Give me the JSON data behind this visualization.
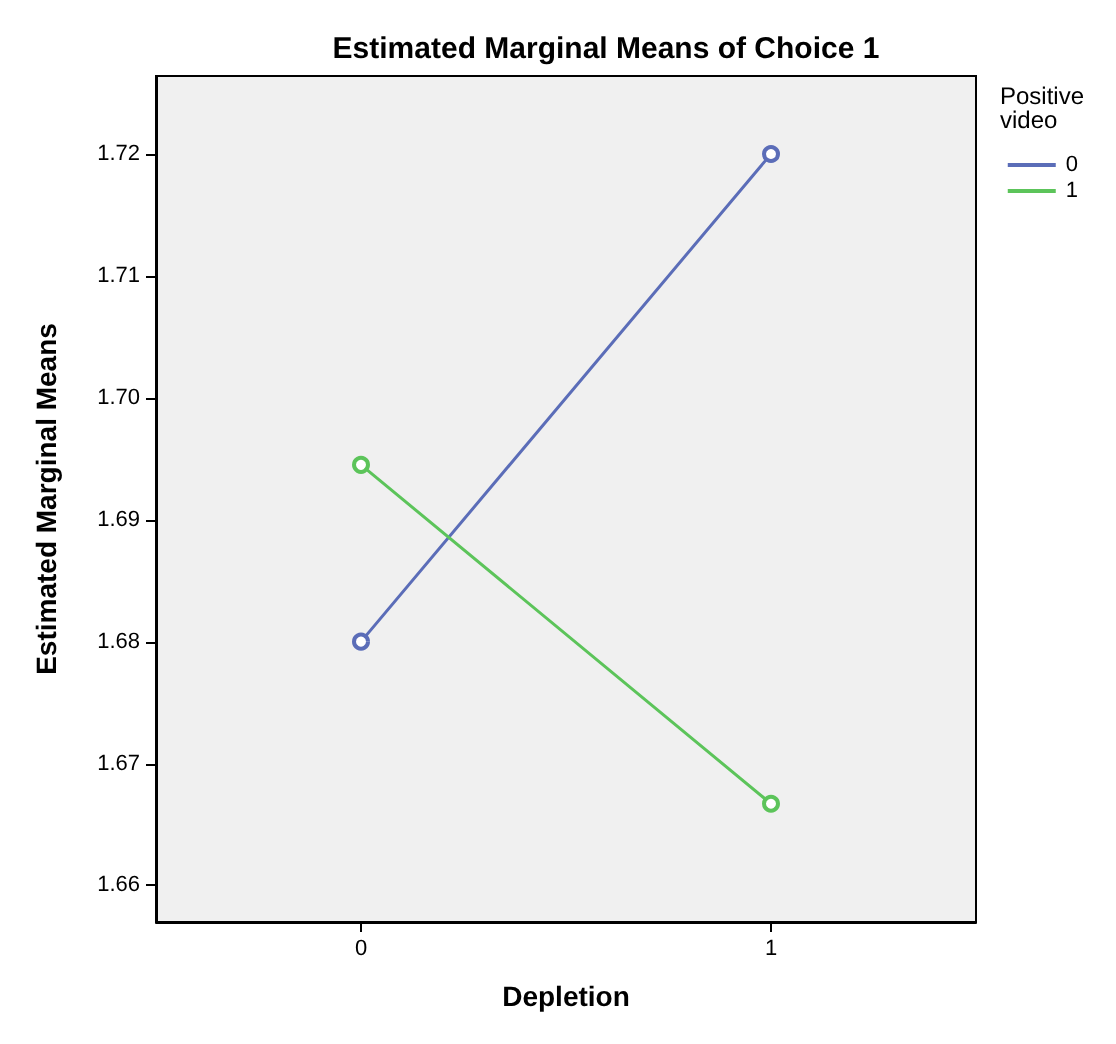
{
  "chart_data": {
    "type": "line",
    "title": "Estimated Marginal Means of Choice 1",
    "xlabel": "Depletion",
    "ylabel": "Estimated Marginal Means",
    "legend_title": "Positive video",
    "categories": [
      "0",
      "1"
    ],
    "series": [
      {
        "name": "0",
        "color": "#5b6db8",
        "values": [
          1.68,
          1.72
        ]
      },
      {
        "name": "1",
        "color": "#5cc45a",
        "values": [
          1.6945,
          1.6667
        ]
      }
    ],
    "ylim": [
      1.657,
      1.7264
    ],
    "yticks": [
      {
        "value": 1.66,
        "label": "1.66"
      },
      {
        "value": 1.67,
        "label": "1.67"
      },
      {
        "value": 1.68,
        "label": "1.68"
      },
      {
        "value": 1.69,
        "label": "1.69"
      },
      {
        "value": 1.7,
        "label": "1.70"
      },
      {
        "value": 1.71,
        "label": "1.71"
      },
      {
        "value": 1.72,
        "label": "1.72"
      }
    ],
    "grid": false,
    "legend": "right",
    "marker": "circle",
    "line_style": "solid"
  }
}
